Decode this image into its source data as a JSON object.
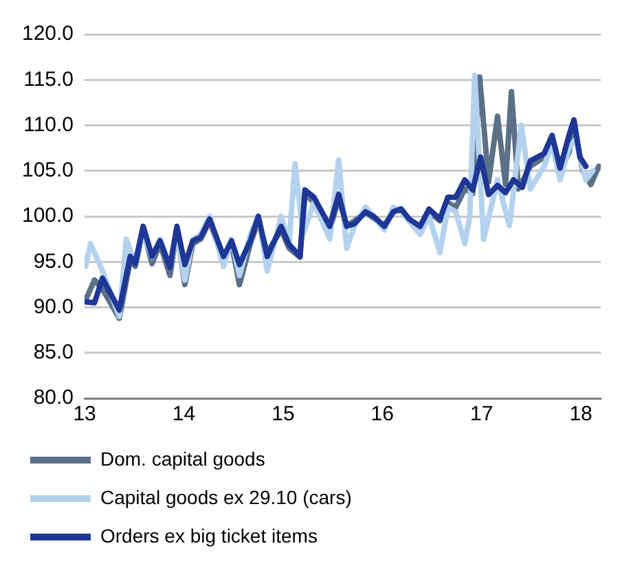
{
  "chart_data": {
    "type": "line",
    "xlim": [
      13,
      18.2
    ],
    "xticks": [
      13,
      14,
      15,
      16,
      17,
      18
    ],
    "ylim": [
      80,
      120
    ],
    "yticks": [
      {
        "value": 80,
        "label": "80.0"
      },
      {
        "value": 85,
        "label": "85.0"
      },
      {
        "value": 90,
        "label": "90.0"
      },
      {
        "value": 95,
        "label": "95.0"
      },
      {
        "value": 100,
        "label": "100.0"
      },
      {
        "value": 105,
        "label": "105.0"
      },
      {
        "value": 110,
        "label": "110.0"
      },
      {
        "value": 115,
        "label": "115.0"
      },
      {
        "value": 120,
        "label": "120.0"
      }
    ],
    "grid": "y",
    "legend": "bottom",
    "marker": "none",
    "line_style": "solid",
    "series": [
      {
        "name": "Dom. capital goods",
        "color": "#5a7087",
        "x": [
          13.01,
          13.1,
          13.18,
          13.35,
          13.46,
          13.51,
          13.59,
          13.68,
          13.76,
          13.86,
          13.93,
          14.01,
          14.09,
          14.17,
          14.26,
          14.4,
          14.48,
          14.56,
          14.67,
          14.75,
          14.84,
          14.98,
          15.06,
          15.17,
          15.22,
          15.31,
          15.47,
          15.56,
          15.64,
          15.72,
          15.83,
          15.91,
          16.02,
          16.11,
          16.19,
          16.27,
          16.38,
          16.47,
          16.58,
          16.66,
          16.74,
          16.83,
          16.91,
          16.98,
          17.07,
          17.16,
          17.24,
          17.3,
          17.37,
          17.49,
          17.63,
          17.71,
          17.79,
          17.88,
          17.93,
          18.02,
          18.1,
          18.18
        ],
        "values": [
          90.8,
          93.0,
          92.0,
          88.8,
          95.2,
          94.5,
          98.5,
          94.8,
          97.0,
          93.5,
          98.5,
          92.5,
          97.0,
          97.5,
          99.5,
          95.0,
          97.0,
          92.5,
          97.0,
          99.5,
          96.0,
          98.5,
          96.5,
          95.5,
          102.5,
          101.5,
          98.5,
          102.0,
          99.0,
          99.5,
          100.5,
          99.8,
          99.0,
          100.5,
          100.8,
          99.5,
          98.5,
          100.5,
          99.5,
          101.5,
          101.0,
          103.0,
          102.5,
          115.3,
          103.8,
          111.0,
          103.5,
          113.7,
          103.0,
          105.5,
          106.5,
          108.0,
          105.0,
          107.0,
          110.0,
          105.0,
          103.5,
          105.5
        ]
      },
      {
        "name": "Capital goods ex 29.10 (cars)",
        "color": "#b4d2ee",
        "x": [
          13.01,
          13.06,
          13.18,
          13.35,
          13.42,
          13.5,
          13.59,
          13.68,
          13.76,
          13.86,
          13.93,
          14.01,
          14.09,
          14.17,
          14.26,
          14.4,
          14.48,
          14.56,
          14.67,
          14.75,
          14.84,
          14.98,
          15.06,
          15.12,
          15.2,
          15.31,
          15.47,
          15.56,
          15.64,
          15.72,
          15.83,
          15.91,
          16.02,
          16.11,
          16.19,
          16.27,
          16.38,
          16.47,
          16.58,
          16.66,
          16.74,
          16.83,
          16.88,
          16.93,
          17.02,
          17.16,
          17.22,
          17.28,
          17.4,
          17.49,
          17.63,
          17.71,
          17.79,
          17.88,
          17.95,
          18.05,
          18.12
        ],
        "values": [
          94.5,
          97.0,
          94.0,
          89.0,
          97.5,
          95.0,
          98.0,
          95.5,
          97.5,
          94.5,
          98.0,
          93.0,
          97.5,
          98.0,
          100.0,
          94.5,
          97.5,
          93.5,
          98.0,
          100.0,
          94.0,
          100.0,
          97.0,
          105.8,
          98.0,
          101.5,
          97.5,
          106.2,
          96.5,
          99.0,
          101.0,
          100.0,
          98.5,
          101.0,
          100.5,
          99.5,
          98.0,
          100.0,
          96.0,
          101.0,
          100.5,
          97.0,
          100.0,
          115.5,
          97.5,
          104.0,
          101.5,
          99.0,
          110.0,
          103.0,
          105.5,
          108.0,
          104.0,
          107.5,
          108.5,
          104.0,
          105.0
        ]
      },
      {
        "name": "Orders ex big ticket items",
        "color": "#1e3796",
        "x": [
          13.01,
          13.1,
          13.18,
          13.35,
          13.46,
          13.51,
          13.59,
          13.68,
          13.76,
          13.86,
          13.93,
          14.01,
          14.09,
          14.17,
          14.26,
          14.4,
          14.48,
          14.56,
          14.67,
          14.75,
          14.84,
          14.98,
          15.06,
          15.17,
          15.22,
          15.31,
          15.47,
          15.56,
          15.64,
          15.72,
          15.83,
          15.91,
          16.02,
          16.11,
          16.19,
          16.27,
          16.38,
          16.47,
          16.58,
          16.66,
          16.74,
          16.83,
          16.91,
          16.99,
          17.07,
          17.16,
          17.24,
          17.32,
          17.41,
          17.49,
          17.63,
          17.71,
          17.79,
          17.88,
          17.93,
          17.99,
          18.05
        ],
        "values": [
          90.6,
          90.5,
          93.2,
          89.7,
          95.6,
          94.8,
          98.9,
          95.6,
          97.3,
          94.4,
          98.9,
          94.7,
          97.3,
          97.7,
          99.7,
          95.6,
          97.3,
          94.7,
          97.3,
          100.0,
          95.6,
          98.9,
          96.9,
          95.6,
          102.9,
          102.1,
          98.9,
          102.4,
          98.9,
          99.2,
          100.5,
          100.0,
          98.9,
          100.5,
          100.8,
          99.7,
          98.9,
          100.8,
          99.7,
          102.1,
          102.1,
          104.0,
          102.9,
          106.5,
          102.4,
          103.4,
          102.6,
          104.0,
          103.2,
          106.1,
          106.9,
          108.9,
          105.3,
          108.9,
          110.6,
          106.5,
          105.5
        ]
      }
    ]
  }
}
